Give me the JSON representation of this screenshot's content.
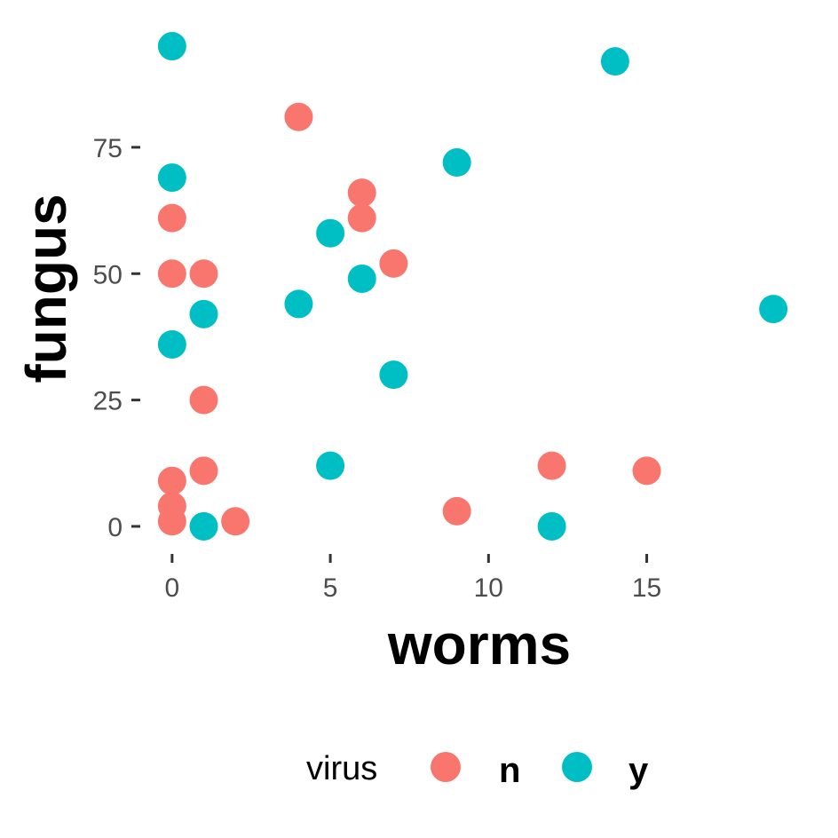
{
  "chart_data": {
    "type": "scatter",
    "title": "",
    "xlabel": "worms",
    "ylabel": "fungus",
    "xlim": [
      -0.95,
      19.95
    ],
    "ylim": [
      -4.75,
      99.75
    ],
    "x_ticks": [
      0,
      5,
      10,
      15
    ],
    "y_ticks": [
      0,
      25,
      50,
      75
    ],
    "grid": false,
    "legend": {
      "title": "virus",
      "position": "bottom"
    },
    "series": [
      {
        "name": "n",
        "color": "#F8766D",
        "points": [
          [
            0,
            61
          ],
          [
            0,
            50
          ],
          [
            0,
            9
          ],
          [
            0,
            4
          ],
          [
            0,
            1
          ],
          [
            1,
            50
          ],
          [
            1,
            25
          ],
          [
            1,
            11
          ],
          [
            2,
            1
          ],
          [
            4,
            81
          ],
          [
            6,
            66
          ],
          [
            6,
            61
          ],
          [
            7,
            52
          ],
          [
            9,
            3
          ],
          [
            12,
            12
          ],
          [
            15,
            11
          ]
        ]
      },
      {
        "name": "y",
        "color": "#00BFC4",
        "points": [
          [
            0,
            95
          ],
          [
            0,
            69
          ],
          [
            0,
            36
          ],
          [
            1,
            42
          ],
          [
            1,
            0
          ],
          [
            4,
            44
          ],
          [
            5,
            58
          ],
          [
            5,
            12
          ],
          [
            6,
            49
          ],
          [
            7,
            30
          ],
          [
            9,
            72
          ],
          [
            12,
            0
          ],
          [
            14,
            92
          ],
          [
            19,
            43
          ]
        ]
      }
    ]
  }
}
